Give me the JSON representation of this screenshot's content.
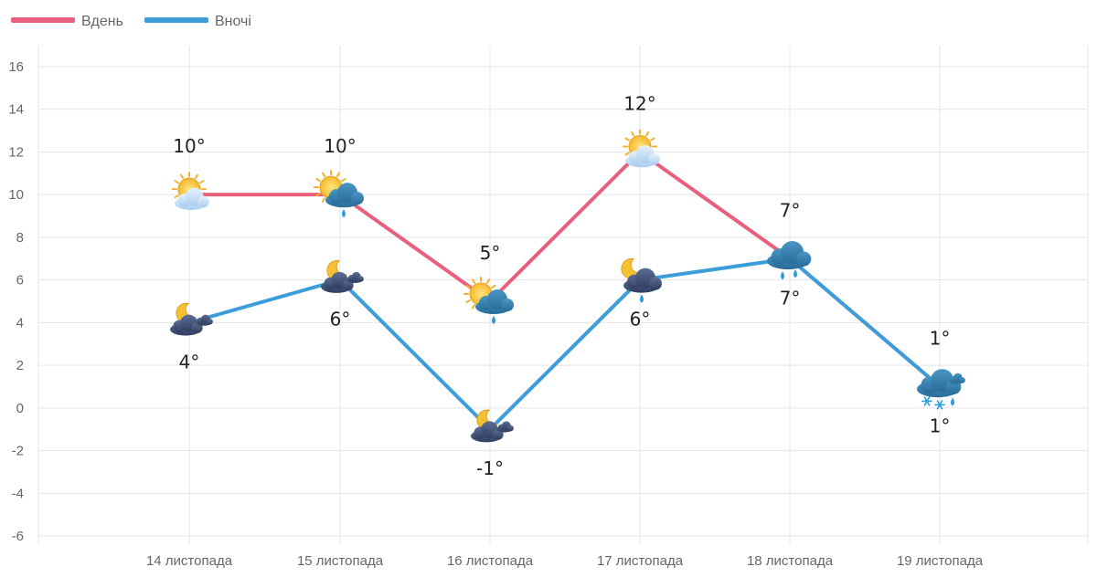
{
  "chart_data": {
    "type": "line",
    "categories": [
      "14 листопада",
      "15 листопада",
      "16 листопада",
      "17 листопада",
      "18 листопада",
      "19 листопада"
    ],
    "series": [
      {
        "name": "Вдень",
        "color": "#e8607c",
        "values": [
          10,
          10,
          5,
          12,
          7,
          1
        ],
        "labels": [
          "10°",
          "10°",
          "5°",
          "12°",
          "7°",
          "1°"
        ],
        "icons": [
          "sun-cloud-icon",
          "sun-cloud-rain-icon",
          "sun-cloud-rain-icon",
          "sun-cloud-icon",
          "rain-cloud-icon",
          "snow-rain-cloud-icon"
        ]
      },
      {
        "name": "Вночі",
        "color": "#3b9edb",
        "values": [
          4,
          6,
          -1,
          6,
          7,
          1
        ],
        "labels": [
          "4°",
          "6°",
          "-1°",
          "6°",
          "7°",
          "1°"
        ],
        "icons": [
          "moon-cloud-icon",
          "moon-cloud-icon",
          "moon-cloud-icon",
          "moon-cloud-rain-icon",
          "rain-cloud-icon",
          "snow-rain-cloud-icon"
        ]
      }
    ],
    "yticks": [
      "16",
      "14",
      "12",
      "10",
      "8",
      "6",
      "4",
      "2",
      "0",
      "-2",
      "-4",
      "-6"
    ],
    "ylim": [
      -6,
      16
    ],
    "grid": true,
    "legend": "top-left"
  }
}
